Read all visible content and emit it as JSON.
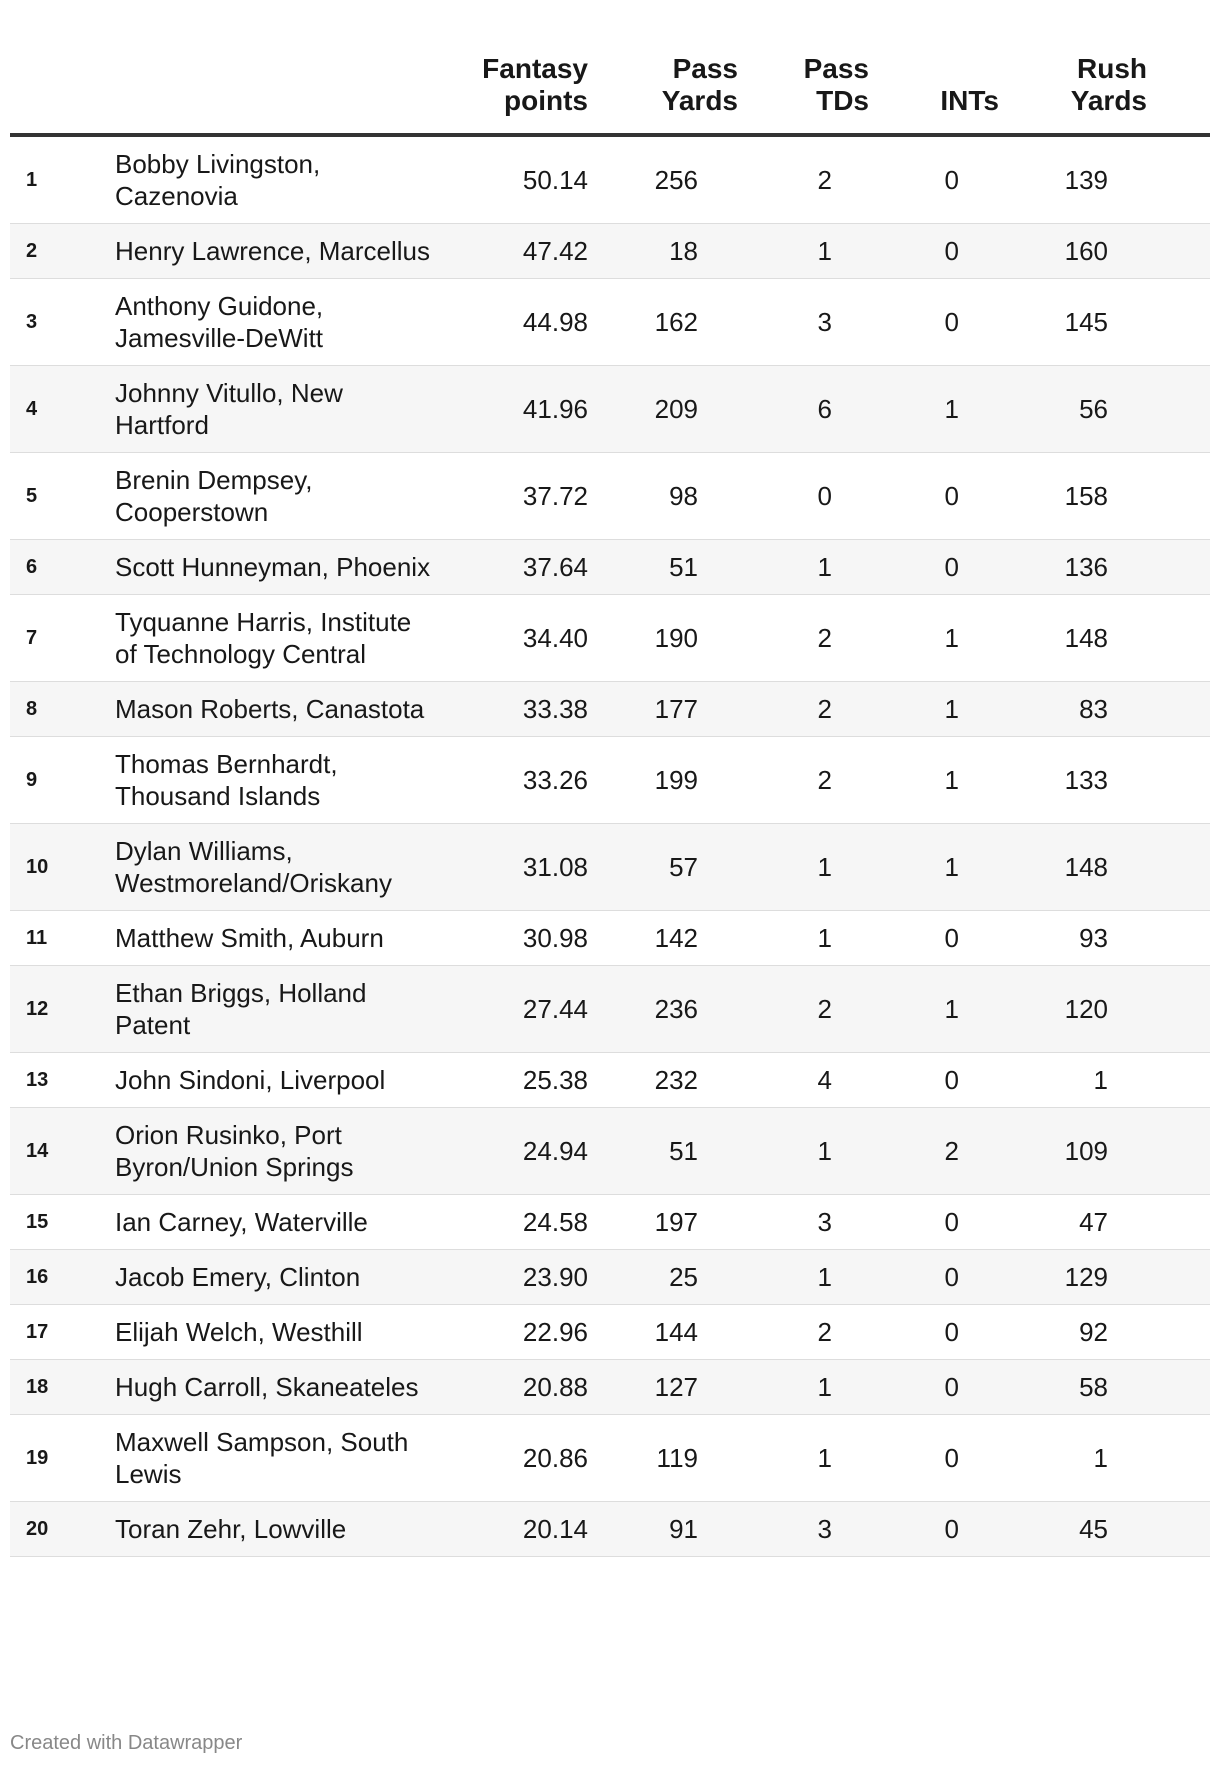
{
  "headers": {
    "fantasy": [
      "Fantasy",
      "points"
    ],
    "pass_yards": [
      "Pass",
      "Yards"
    ],
    "pass_tds": [
      "Pass",
      "TDs"
    ],
    "ints": [
      "INTs"
    ],
    "rush_yards": [
      "Rush",
      "Yards"
    ]
  },
  "rows": [
    {
      "rank": "1",
      "name": "Bobby Livingston, Cazenovia",
      "fantasy": "50.14",
      "pass_yards": "256",
      "pass_tds": "2",
      "ints": "0",
      "rush_yards": "139"
    },
    {
      "rank": "2",
      "name": "Henry Lawrence, Marcellus",
      "fantasy": "47.42",
      "pass_yards": "18",
      "pass_tds": "1",
      "ints": "0",
      "rush_yards": "160"
    },
    {
      "rank": "3",
      "name": "Anthony Guidone, Jamesville-DeWitt",
      "fantasy": "44.98",
      "pass_yards": "162",
      "pass_tds": "3",
      "ints": "0",
      "rush_yards": "145"
    },
    {
      "rank": "4",
      "name": "Johnny Vitullo, New Hartford",
      "fantasy": "41.96",
      "pass_yards": "209",
      "pass_tds": "6",
      "ints": "1",
      "rush_yards": "56"
    },
    {
      "rank": "5",
      "name": "Brenin Dempsey, Cooperstown",
      "fantasy": "37.72",
      "pass_yards": "98",
      "pass_tds": "0",
      "ints": "0",
      "rush_yards": "158"
    },
    {
      "rank": "6",
      "name": "Scott Hunneyman, Phoenix",
      "fantasy": "37.64",
      "pass_yards": "51",
      "pass_tds": "1",
      "ints": "0",
      "rush_yards": "136"
    },
    {
      "rank": "7",
      "name": "Tyquanne Harris, Institute of Technology Central",
      "fantasy": "34.40",
      "pass_yards": "190",
      "pass_tds": "2",
      "ints": "1",
      "rush_yards": "148"
    },
    {
      "rank": "8",
      "name": "Mason Roberts, Canastota",
      "fantasy": "33.38",
      "pass_yards": "177",
      "pass_tds": "2",
      "ints": "1",
      "rush_yards": "83"
    },
    {
      "rank": "9",
      "name": "Thomas Bernhardt, Thousand Islands",
      "fantasy": "33.26",
      "pass_yards": "199",
      "pass_tds": "2",
      "ints": "1",
      "rush_yards": "133"
    },
    {
      "rank": "10",
      "name": "Dylan Williams, Westmoreland/Oriskany",
      "fantasy": "31.08",
      "pass_yards": "57",
      "pass_tds": "1",
      "ints": "1",
      "rush_yards": "148"
    },
    {
      "rank": "11",
      "name": "Matthew Smith, Auburn",
      "fantasy": "30.98",
      "pass_yards": "142",
      "pass_tds": "1",
      "ints": "0",
      "rush_yards": "93"
    },
    {
      "rank": "12",
      "name": "Ethan Briggs, Holland Patent",
      "fantasy": "27.44",
      "pass_yards": "236",
      "pass_tds": "2",
      "ints": "1",
      "rush_yards": "120"
    },
    {
      "rank": "13",
      "name": "John Sindoni, Liverpool",
      "fantasy": "25.38",
      "pass_yards": "232",
      "pass_tds": "4",
      "ints": "0",
      "rush_yards": "1"
    },
    {
      "rank": "14",
      "name": "Orion Rusinko, Port Byron/Union Springs",
      "fantasy": "24.94",
      "pass_yards": "51",
      "pass_tds": "1",
      "ints": "2",
      "rush_yards": "109"
    },
    {
      "rank": "15",
      "name": "Ian Carney, Waterville",
      "fantasy": "24.58",
      "pass_yards": "197",
      "pass_tds": "3",
      "ints": "0",
      "rush_yards": "47"
    },
    {
      "rank": "16",
      "name": "Jacob Emery, Clinton",
      "fantasy": "23.90",
      "pass_yards": "25",
      "pass_tds": "1",
      "ints": "0",
      "rush_yards": "129"
    },
    {
      "rank": "17",
      "name": "Elijah Welch, Westhill",
      "fantasy": "22.96",
      "pass_yards": "144",
      "pass_tds": "2",
      "ints": "0",
      "rush_yards": "92"
    },
    {
      "rank": "18",
      "name": "Hugh Carroll, Skaneateles",
      "fantasy": "20.88",
      "pass_yards": "127",
      "pass_tds": "1",
      "ints": "0",
      "rush_yards": "58"
    },
    {
      "rank": "19",
      "name": "Maxwell Sampson, South Lewis",
      "fantasy": "20.86",
      "pass_yards": "119",
      "pass_tds": "1",
      "ints": "0",
      "rush_yards": "1"
    },
    {
      "rank": "20",
      "name": "Toran Zehr, Lowville",
      "fantasy": "20.14",
      "pass_yards": "91",
      "pass_tds": "3",
      "ints": "0",
      "rush_yards": "45"
    }
  ],
  "footer": "Created with Datawrapper"
}
